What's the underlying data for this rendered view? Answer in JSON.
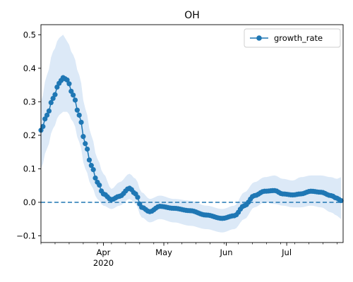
{
  "chart_data": {
    "type": "line",
    "title": "OH",
    "xlabel": "",
    "ylabel": "",
    "x_range": [
      "2020-03-01",
      "2020-07-29"
    ],
    "ylim": [
      -0.12,
      0.53
    ],
    "grid": false,
    "legend": {
      "placement": "top-right",
      "entries": [
        "growth_rate"
      ]
    },
    "reference_line": {
      "y": 0.0,
      "style": "dashed"
    },
    "x_ticks": [
      {
        "date": "2020-04-01",
        "label": "Apr"
      },
      {
        "date": "2020-05-01",
        "label": "May"
      },
      {
        "date": "2020-06-01",
        "label": "Jun"
      },
      {
        "date": "2020-07-01",
        "label": "Jul"
      }
    ],
    "x_year_label": {
      "date": "2020-04-01",
      "label": "2020"
    },
    "y_ticks": [
      {
        "value": -0.1,
        "label": "−0.1"
      },
      {
        "value": 0.0,
        "label": "0.0"
      },
      {
        "value": 0.1,
        "label": "0.1"
      },
      {
        "value": 0.2,
        "label": "0.2"
      },
      {
        "value": 0.3,
        "label": "0.3"
      },
      {
        "value": 0.4,
        "label": "0.4"
      },
      {
        "value": 0.5,
        "label": "0.5"
      }
    ],
    "colors": {
      "series": "#1f77b4",
      "band": "#dce9f7"
    },
    "series": [
      {
        "name": "growth_rate",
        "keyframes": [
          {
            "x": "2020-03-01",
            "y": 0.215,
            "lower": 0.1,
            "upper": 0.3
          },
          {
            "x": "2020-03-04",
            "y": 0.26,
            "lower": 0.16,
            "upper": 0.38
          },
          {
            "x": "2020-03-07",
            "y": 0.31,
            "lower": 0.22,
            "upper": 0.45
          },
          {
            "x": "2020-03-10",
            "y": 0.355,
            "lower": 0.26,
            "upper": 0.49
          },
          {
            "x": "2020-03-12",
            "y": 0.372,
            "lower": 0.27,
            "upper": 0.5
          },
          {
            "x": "2020-03-14",
            "y": 0.365,
            "lower": 0.27,
            "upper": 0.48
          },
          {
            "x": "2020-03-17",
            "y": 0.32,
            "lower": 0.24,
            "upper": 0.44
          },
          {
            "x": "2020-03-20",
            "y": 0.26,
            "lower": 0.18,
            "upper": 0.38
          },
          {
            "x": "2020-03-23",
            "y": 0.175,
            "lower": 0.1,
            "upper": 0.28
          },
          {
            "x": "2020-03-26",
            "y": 0.11,
            "lower": 0.05,
            "upper": 0.2
          },
          {
            "x": "2020-03-29",
            "y": 0.06,
            "lower": 0.01,
            "upper": 0.13
          },
          {
            "x": "2020-04-01",
            "y": 0.025,
            "lower": -0.01,
            "upper": 0.085
          },
          {
            "x": "2020-04-05",
            "y": 0.008,
            "lower": -0.02,
            "upper": 0.04
          },
          {
            "x": "2020-04-09",
            "y": 0.018,
            "lower": -0.01,
            "upper": 0.06
          },
          {
            "x": "2020-04-14",
            "y": 0.042,
            "lower": 0.01,
            "upper": 0.085
          },
          {
            "x": "2020-04-17",
            "y": 0.025,
            "lower": -0.005,
            "upper": 0.07
          },
          {
            "x": "2020-04-20",
            "y": -0.015,
            "lower": -0.045,
            "upper": 0.03
          },
          {
            "x": "2020-04-24",
            "y": -0.028,
            "lower": -0.06,
            "upper": 0.01
          },
          {
            "x": "2020-04-29",
            "y": -0.012,
            "lower": -0.05,
            "upper": 0.02
          },
          {
            "x": "2020-05-06",
            "y": -0.018,
            "lower": -0.06,
            "upper": 0.01
          },
          {
            "x": "2020-05-14",
            "y": -0.025,
            "lower": -0.07,
            "upper": 0.005
          },
          {
            "x": "2020-05-22",
            "y": -0.038,
            "lower": -0.08,
            "upper": -0.01
          },
          {
            "x": "2020-05-30",
            "y": -0.048,
            "lower": -0.09,
            "upper": -0.02
          },
          {
            "x": "2020-06-05",
            "y": -0.04,
            "lower": -0.08,
            "upper": -0.01
          },
          {
            "x": "2020-06-10",
            "y": -0.01,
            "lower": -0.05,
            "upper": 0.03
          },
          {
            "x": "2020-06-15",
            "y": 0.02,
            "lower": -0.015,
            "upper": 0.06
          },
          {
            "x": "2020-06-20",
            "y": 0.033,
            "lower": 0.0,
            "upper": 0.075
          },
          {
            "x": "2020-06-25",
            "y": 0.035,
            "lower": -0.005,
            "upper": 0.08
          },
          {
            "x": "2020-06-29",
            "y": 0.025,
            "lower": -0.01,
            "upper": 0.07
          },
          {
            "x": "2020-07-04",
            "y": 0.022,
            "lower": -0.015,
            "upper": 0.065
          },
          {
            "x": "2020-07-08",
            "y": 0.025,
            "lower": -0.015,
            "upper": 0.075
          },
          {
            "x": "2020-07-13",
            "y": 0.033,
            "lower": -0.01,
            "upper": 0.08
          },
          {
            "x": "2020-07-18",
            "y": 0.03,
            "lower": -0.015,
            "upper": 0.08
          },
          {
            "x": "2020-07-23",
            "y": 0.02,
            "lower": -0.03,
            "upper": 0.075
          },
          {
            "x": "2020-07-26",
            "y": 0.012,
            "lower": -0.04,
            "upper": 0.07
          },
          {
            "x": "2020-07-28",
            "y": 0.005,
            "lower": -0.05,
            "upper": 0.075
          }
        ]
      }
    ]
  }
}
